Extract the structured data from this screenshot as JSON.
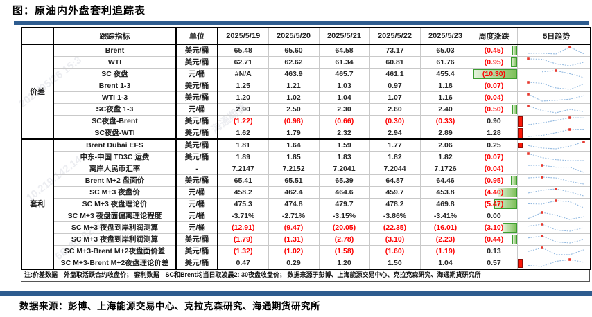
{
  "title": "图：原油内外盘套利追踪表",
  "footnote": "注:价差数据—外盘取活跃合约收盘价； 套利数据—SC和Brent均当日取凌晨2: 30夜盘收盘价； 数据来源于彭博、上海能源交易中心、克拉克森研究、海通期货研究所",
  "source_line": "数据来源：彭博、上海能源交易中心、克拉克森研究、海通期货研究所",
  "watermarks": [
    "2025/05/26 15:3",
    "10.219.142.14",
    "6B-8C-82-52-A4",
    "海通期货"
  ],
  "colors": {
    "accent_blue": "#2e5c8f",
    "negative_red": "#fe0000",
    "bar_red": "#fb1607",
    "bar_green_border": "#3c9e30",
    "bar_green_fill": "#7dbf58",
    "spark_blue": "#92b9e0",
    "spark_marker_red": "#e8392e"
  },
  "table": {
    "headers": {
      "indicator": "跟踪指标",
      "unit": "单位",
      "dates": [
        "2025/5/19",
        "2025/5/20",
        "2025/5/21",
        "2025/5/22",
        "2025/5/23"
      ],
      "weekly_change": "周度涨跌",
      "strip": "",
      "trend": "5日趋势"
    },
    "groups": [
      {
        "label": "价差",
        "rows": [
          {
            "ind": "Brent",
            "unit": "美元/桶",
            "vals": [
              "65.48",
              "65.60",
              "64.58",
              "73.17",
              "65.03"
            ],
            "chg": "(0.45)",
            "gbar": 7,
            "rbar": 0,
            "spark": [
              65.48,
              65.6,
              64.58,
              73.17,
              65.03
            ]
          },
          {
            "ind": "WTI",
            "unit": "美元/桶",
            "vals": [
              "62.71",
              "62.62",
              "61.34",
              "60.81",
              "61.76"
            ],
            "chg": "(0.95)",
            "gbar": 9,
            "rbar": 0,
            "spark": [
              62.71,
              62.62,
              61.34,
              60.81,
              61.76
            ]
          },
          {
            "ind": "SC 夜盘",
            "unit": "元/桶",
            "vals": [
              "#N/A",
              "463.9",
              "465.7",
              "461.1",
              "455.4"
            ],
            "chg": "(10.30)",
            "gbar": 63,
            "rbar": 0,
            "spark": [
              null,
              463.9,
              465.7,
              461.1,
              455.4
            ]
          },
          {
            "ind": "Brent 1-3",
            "unit": "美元/桶",
            "vals": [
              "1.25",
              "1.21",
              "1.03",
              "0.97",
              "1.18"
            ],
            "chg": "(0.07)",
            "gbar": 0,
            "rbar": 0,
            "spark": [
              1.25,
              1.21,
              1.03,
              0.97,
              1.18
            ]
          },
          {
            "ind": "WTI 1-3",
            "unit": "美元/桶",
            "vals": [
              "1.20",
              "1.02",
              "1.04",
              "1.07",
              "1.16"
            ],
            "chg": "(0.04)",
            "gbar": 0,
            "rbar": 0,
            "spark": [
              1.2,
              1.02,
              1.04,
              1.07,
              1.16
            ]
          },
          {
            "ind": "SC夜盘 1-3",
            "unit": "元/桶",
            "vals": [
              "2.90",
              "2.50",
              "2.30",
              "2.60",
              "2.40"
            ],
            "chg": "(0.50)",
            "gbar": 7,
            "rbar": 0,
            "spark": [
              2.9,
              2.5,
              2.3,
              2.6,
              2.4
            ]
          },
          {
            "ind": "SC夜盘-Brent",
            "unit": "美元/桶",
            "vals": [
              "(1.22)",
              "(0.98)",
              "(0.66)",
              "(0.30)",
              "(0.33)"
            ],
            "chg": "0.90",
            "gbar": 0,
            "rbar": 15,
            "spark": [
              -1.22,
              -0.98,
              -0.66,
              -0.3,
              -0.33
            ]
          },
          {
            "ind": "SC夜盘-WTI",
            "unit": "美元/桶",
            "vals": [
              "1.62",
              "1.79",
              "2.32",
              "2.94",
              "2.89"
            ],
            "chg": "1.28",
            "gbar": 0,
            "rbar": 15,
            "spark": [
              1.62,
              1.79,
              2.32,
              2.94,
              2.89
            ]
          }
        ]
      },
      {
        "label": "套利",
        "rows": [
          {
            "ind": "Brent Dubai EFS",
            "unit": "美元/桶",
            "vals": [
              "1.81",
              "1.64",
              "1.59",
              "1.77",
              "2.06"
            ],
            "chg": "0.25",
            "gbar": 0,
            "rbar": 8,
            "spark": [
              1.81,
              1.64,
              1.59,
              1.77,
              2.06
            ]
          },
          {
            "ind": "中东-中国 TD3C 运费",
            "unit": "美元/桶",
            "vals": [
              "1.89",
              "1.85",
              "1.83",
              "1.82",
              "1.82"
            ],
            "chg": "(0.07)",
            "gbar": 0,
            "rbar": 0,
            "spark": [
              1.89,
              1.85,
              1.83,
              1.82,
              1.82
            ]
          },
          {
            "ind": "离岸人民币汇率",
            "unit": "-",
            "vals": [
              "7.2147",
              "7.2152",
              "7.2041",
              "7.2044",
              "7.1726"
            ],
            "chg": "(0.04)",
            "gbar": 0,
            "rbar": 0,
            "spark": [
              7.2147,
              7.2152,
              7.2041,
              7.2044,
              7.1726
            ]
          },
          {
            "ind": "Brent M+2 盘面价",
            "unit": "美元/桶",
            "vals": [
              "65.41",
              "65.51",
              "65.39",
              "64.87",
              "64.46"
            ],
            "chg": "(0.95)",
            "gbar": 9,
            "rbar": 0,
            "spark": [
              65.41,
              65.51,
              65.39,
              64.87,
              64.46
            ]
          },
          {
            "ind": "SC M+3 夜盘价",
            "unit": "元/桶",
            "vals": [
              "458.2",
              "462.4",
              "464.6",
              "459.7",
              "453.8"
            ],
            "chg": "(4.40)",
            "gbar": 28,
            "rbar": 0,
            "spark": [
              458.2,
              462.4,
              464.6,
              459.7,
              453.8
            ]
          },
          {
            "ind": "SC M+3 夜盘理论价",
            "unit": "元/桶",
            "vals": [
              "475.3",
              "474.8",
              "479.7",
              "478.2",
              "469.8"
            ],
            "chg": "(5.47)",
            "gbar": 33,
            "rbar": 0,
            "spark": [
              475.3,
              474.8,
              479.7,
              478.2,
              469.8
            ]
          },
          {
            "ind": "SC M+3 夜盘面偏离理论程度",
            "unit": "元/桶",
            "vals": [
              "-3.71%",
              "-2.71%",
              "-3.15%",
              "-3.86%",
              "-3.41%"
            ],
            "chg": "0.00",
            "gbar": 0,
            "rbar": 0,
            "spark": [
              -3.71,
              -2.71,
              -3.15,
              -3.86,
              -3.41
            ]
          },
          {
            "ind": "SC M+3 夜盘到岸利润测算",
            "unit": "元/桶",
            "vals": [
              "(12.91)",
              "(9.47)",
              "(20.05)",
              "(22.35)",
              "(16.01)"
            ],
            "chg": "(3.10)",
            "gbar": 21,
            "rbar": 0,
            "spark": [
              -12.91,
              -9.47,
              -20.05,
              -22.35,
              -16.01
            ]
          },
          {
            "ind": "SC M+3 夜盘到岸利润测算",
            "unit": "美元/桶",
            "vals": [
              "(1.79)",
              "(1.31)",
              "(2.78)",
              "(3.10)",
              "(2.23)"
            ],
            "chg": "(0.44)",
            "gbar": 7,
            "rbar": 0,
            "spark": [
              -1.79,
              -1.31,
              -2.78,
              -3.1,
              -2.23
            ]
          },
          {
            "ind": "SC M+3-Brent M+2夜盘面价差",
            "unit": "美元/桶",
            "vals": [
              "(1.32)",
              "(1.02)",
              "(1.58)",
              "(1.60)",
              "(1.19)"
            ],
            "chg": "0.13",
            "gbar": 0,
            "rbar": 0,
            "spark": [
              -1.32,
              -1.02,
              -1.58,
              -1.6,
              -1.19
            ]
          },
          {
            "ind": "SC M+3-Brent M+2夜盘理论价差",
            "unit": "美元/桶",
            "vals": [
              "0.47",
              "0.29",
              "1.20",
              "1.50",
              "1.04"
            ],
            "chg": "0.57",
            "gbar": 0,
            "rbar": 13,
            "spark": [
              0.47,
              0.29,
              1.2,
              1.5,
              1.04
            ]
          }
        ]
      }
    ]
  }
}
